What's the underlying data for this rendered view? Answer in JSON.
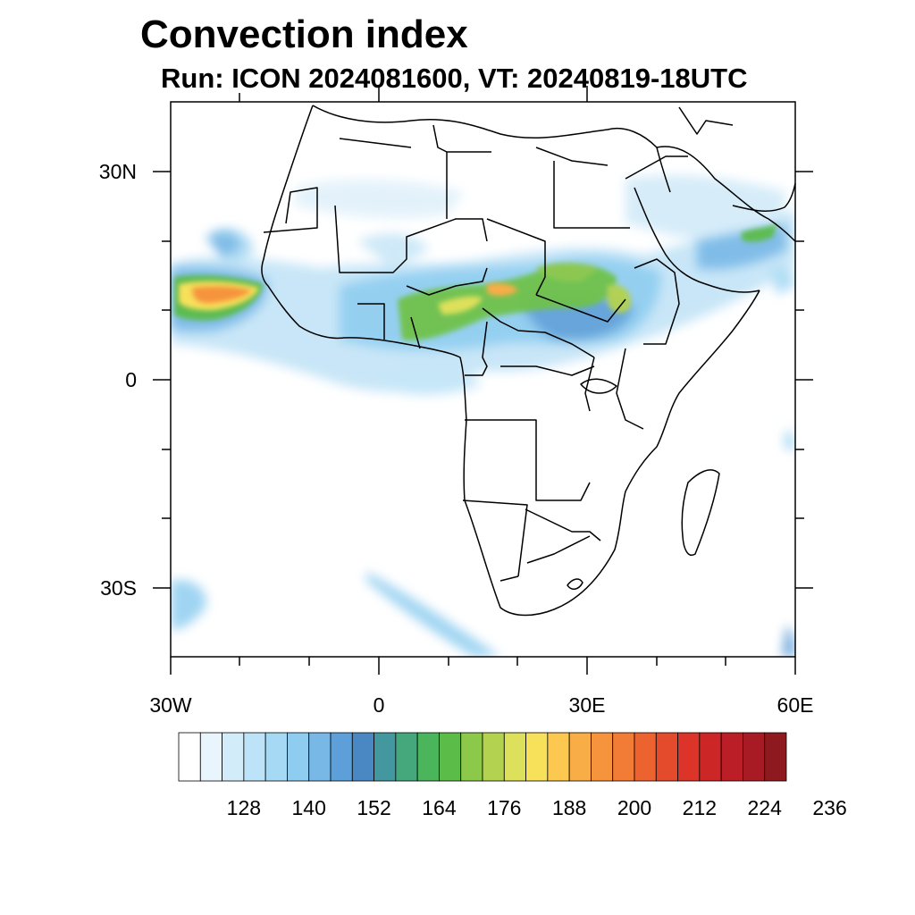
{
  "title": "Convection index",
  "subtitle": "Run: ICON 2024081600,  VT: 20240819-18UTC",
  "axes": {
    "lon_labels": [
      "30W",
      "0",
      "30E",
      "60E"
    ],
    "lat_labels": [
      "30N",
      "0",
      "30S"
    ]
  },
  "colorbar": {
    "labels": [
      "128",
      "140",
      "152",
      "164",
      "176",
      "188",
      "200",
      "212",
      "224",
      "236"
    ],
    "colors": [
      "#ffffff",
      "#e8f5fc",
      "#d2ecf9",
      "#bce3f7",
      "#a5d9f4",
      "#8fcdf0",
      "#78b8e6",
      "#5d9fd8",
      "#4a88c4",
      "#4398a0",
      "#45a87c",
      "#4ab55a",
      "#5cbc48",
      "#8cc84a",
      "#b3d250",
      "#dde05a",
      "#f7e05a",
      "#fcc84f",
      "#f9ad46",
      "#f6943d",
      "#f27b36",
      "#ec6330",
      "#e34b2c",
      "#dc3429",
      "#cc2627",
      "#bb1e26",
      "#a81b25",
      "#8e1a1f"
    ]
  }
}
